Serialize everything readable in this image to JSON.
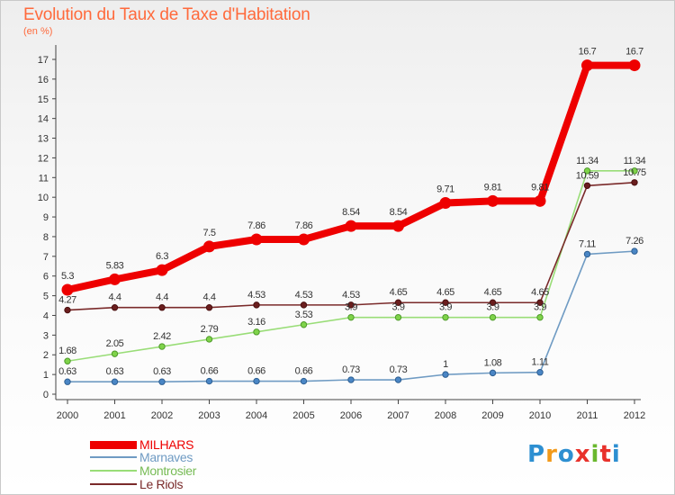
{
  "title": "Evolution du Taux de Taxe d'Habitation",
  "subtitle": "(en %)",
  "logo": {
    "text": "Proxiti",
    "letters": [
      "P",
      "r",
      "o",
      "x",
      "i",
      "t",
      "i"
    ],
    "colors": [
      "#2d8fd1",
      "#f29a1a",
      "#2d8fd1",
      "#e8312b",
      "#6ab82e",
      "#e8312b",
      "#2d8fd1"
    ]
  },
  "chart_data": {
    "type": "line",
    "title": "Evolution du Taux de Taxe d'Habitation",
    "ylabel": "(en %)",
    "xlabel": "",
    "x": [
      "2000",
      "2001",
      "2002",
      "2003",
      "2004",
      "2005",
      "2006",
      "2007",
      "2008",
      "2009",
      "2010",
      "2011",
      "2012"
    ],
    "ylim": [
      0,
      17
    ],
    "yticks": [
      "0",
      "1",
      "2",
      "3",
      "4",
      "5",
      "6",
      "7",
      "8",
      "9",
      "10",
      "11",
      "12",
      "13",
      "14",
      "15",
      "16",
      "17"
    ],
    "grid": false,
    "legend_position": "bottom-left",
    "series": [
      {
        "name": "MILHARS",
        "color": "#ee0000",
        "values": [
          5.3,
          5.83,
          6.3,
          7.5,
          7.86,
          7.86,
          8.54,
          8.54,
          9.71,
          9.81,
          9.81,
          16.7,
          16.7
        ],
        "labels": [
          "5.3",
          "5.83",
          "6.3",
          "7.5",
          "7.86",
          "7.86",
          "8.54",
          "8.54",
          "9.71",
          "9.81",
          "9.81",
          "16.7",
          "16.7"
        ]
      },
      {
        "name": "Marnaves",
        "color": "#6f9bc3",
        "values": [
          0.63,
          0.63,
          0.63,
          0.66,
          0.66,
          0.66,
          0.73,
          0.73,
          1,
          1.08,
          1.11,
          7.11,
          7.26
        ],
        "labels": [
          "0.63",
          "0.63",
          "0.63",
          "0.66",
          "0.66",
          "0.66",
          "0.73",
          "0.73",
          "1",
          "1.08",
          "1.11",
          "7.11",
          "7.26"
        ]
      },
      {
        "name": "Montrosier",
        "color": "#99dd77",
        "values": [
          1.68,
          2.05,
          2.42,
          2.79,
          3.16,
          3.53,
          3.9,
          3.9,
          3.9,
          3.9,
          3.9,
          11.34,
          11.34
        ],
        "labels": [
          "1.68",
          "2.05",
          "2.42",
          "2.79",
          "3.16",
          "3.53",
          "3.9",
          "3.9",
          "3.9",
          "3.9",
          "3.9",
          "11.34",
          "11.34"
        ]
      },
      {
        "name": "Le Riols",
        "color": "#7a2a2a",
        "values": [
          4.27,
          4.4,
          4.4,
          4.4,
          4.53,
          4.53,
          4.53,
          4.65,
          4.65,
          4.65,
          4.65,
          10.59,
          10.75
        ],
        "labels": [
          "4.27",
          "4.4",
          "4.4",
          "4.4",
          "4.53",
          "4.53",
          "4.53",
          "4.65",
          "4.65",
          "4.65",
          "4.65",
          "10.59",
          "10.75"
        ]
      }
    ]
  }
}
